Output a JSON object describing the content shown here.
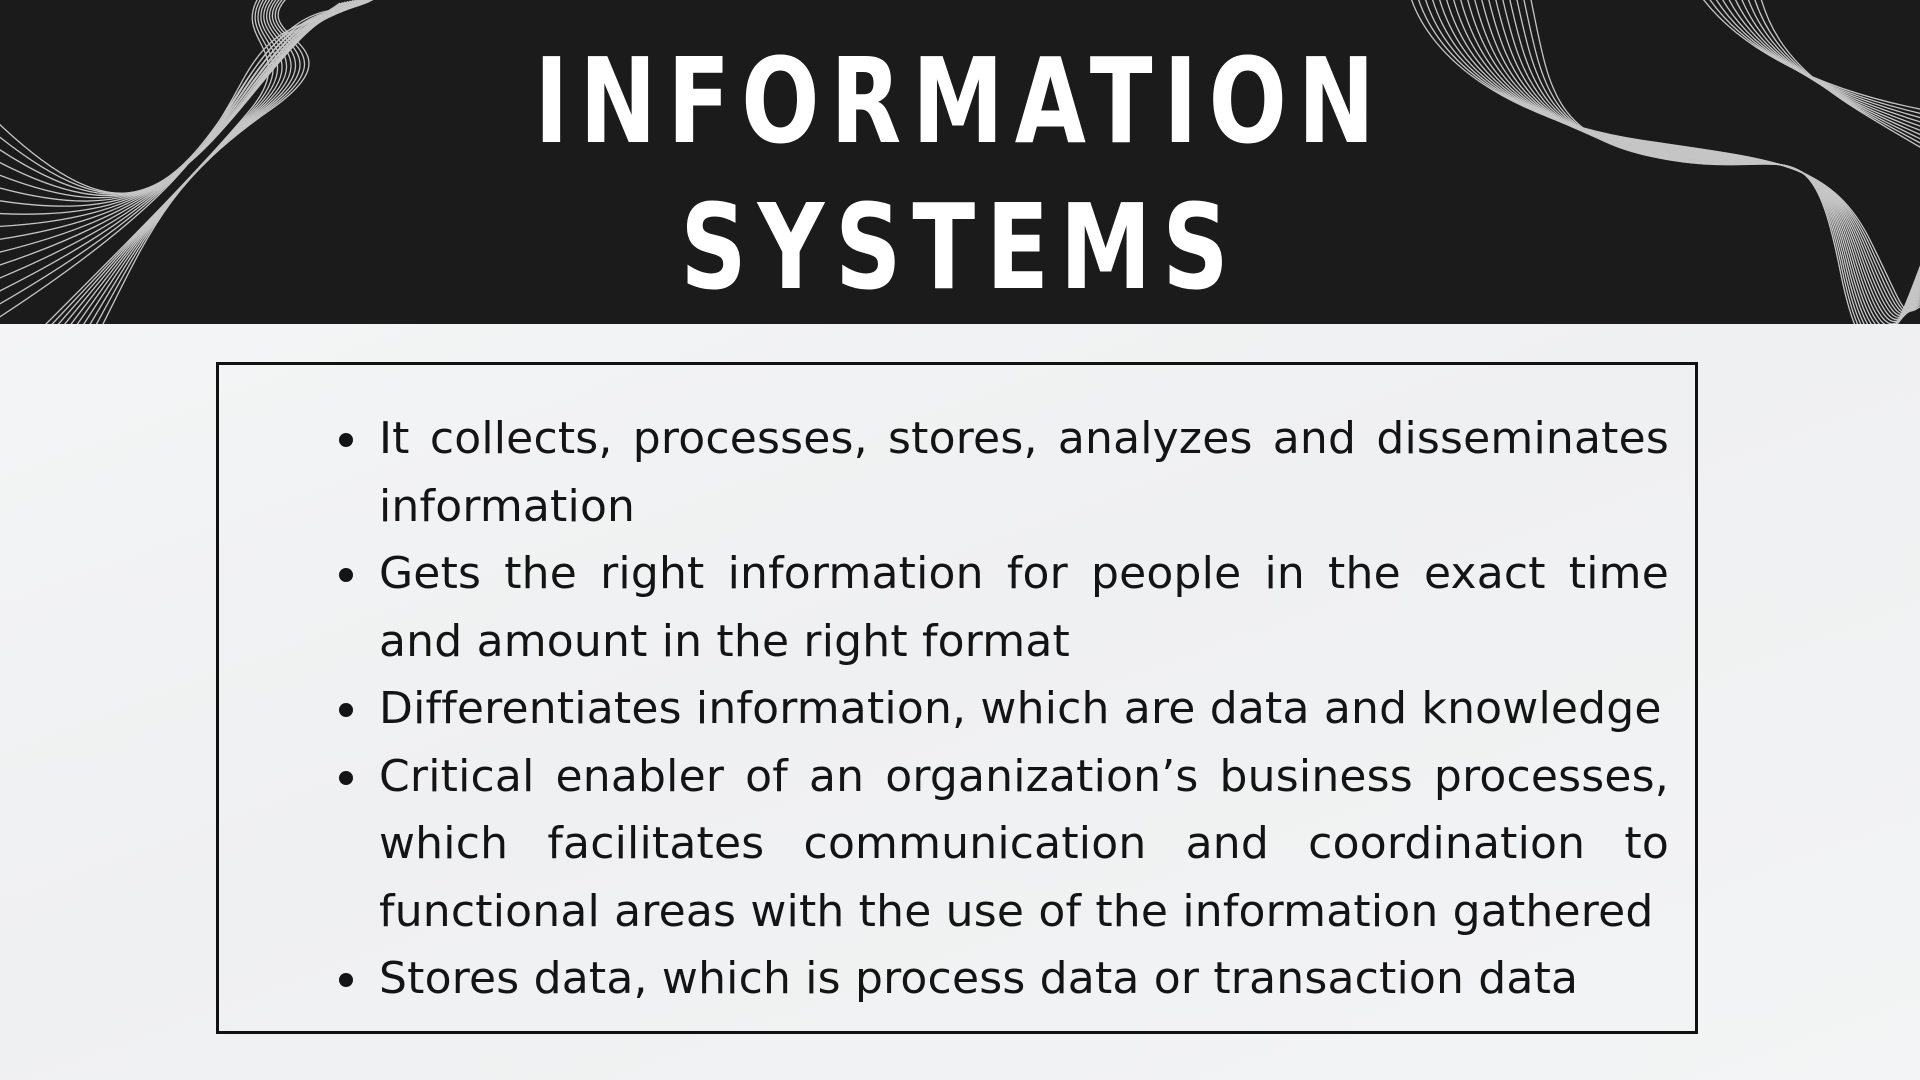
{
  "slide": {
    "title_line_1": "INFORMATION",
    "title_line_2": "SYSTEMS",
    "bullets": [
      "It collects, processes, stores, analyzes and disseminates information",
      "Gets the right information for people in the exact time and amount in the right format",
      "Differentiates information, which are data and knowledge",
      "Critical enabler of an organization’s business processes, which facilitates communication and coordination to functional areas with the use of the information gathered",
      "Stores data, which is process data or transaction data"
    ]
  },
  "colors": {
    "header_background": "#1b1b1b",
    "title_text": "#ffffff",
    "body_background": "#f4f5f6",
    "body_text": "#141414",
    "box_border": "#111111",
    "wave_lines": "#d8d8d8"
  },
  "icons": {
    "header_left_decoration": "wave-lines-icon",
    "header_right_decoration": "wave-lines-icon",
    "bullet_marker": "bullet-dot-icon"
  }
}
